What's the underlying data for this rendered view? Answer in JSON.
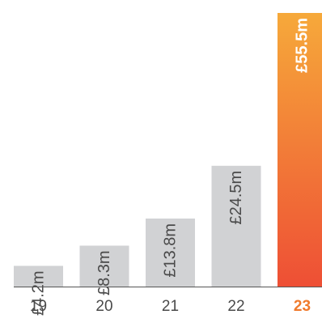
{
  "chart_data": {
    "type": "bar",
    "categories": [
      "19",
      "20",
      "21",
      "22",
      "23"
    ],
    "values": [
      4.2,
      8.3,
      13.8,
      24.5,
      55.5
    ],
    "value_labels": [
      "£4.2m",
      "£8.3m",
      "£13.8m",
      "£24.5m",
      "£55.5m"
    ],
    "unit": "£m",
    "highlight_index": 4,
    "ylim": [
      0,
      55.5
    ],
    "grid": false,
    "legend": "none",
    "title": "",
    "xlabel": "",
    "ylabel": ""
  },
  "colors": {
    "bar": "#d1d2d4",
    "highlight_top": "#f6a93a",
    "highlight_bottom": "#ee4f35",
    "baseline": "#555555",
    "tick_text": "#4a4a4a",
    "highlight_tick": "#f07a2c",
    "label_dark": "#4a4a4a",
    "label_light": "#ffffff"
  }
}
